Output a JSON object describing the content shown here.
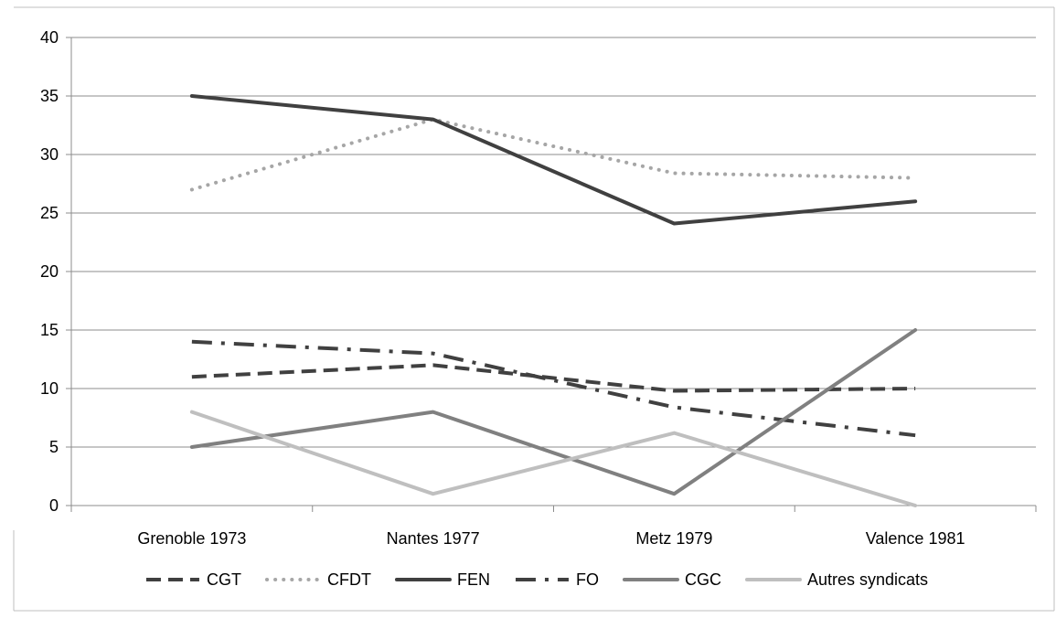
{
  "chart_data": {
    "type": "line",
    "title": "",
    "xlabel": "",
    "ylabel": "",
    "categories": [
      "Grenoble 1973",
      "Nantes 1977",
      "Metz 1979",
      "Valence 1981"
    ],
    "ylim": [
      0,
      40
    ],
    "yticks": [
      0,
      5,
      10,
      15,
      20,
      25,
      30,
      35,
      40
    ],
    "grid": true,
    "legend_position": "bottom",
    "series": [
      {
        "name": "CGT",
        "values": [
          11,
          12,
          9.8,
          10
        ],
        "color": "#404040",
        "style": "dashed"
      },
      {
        "name": "CFDT",
        "values": [
          27,
          33,
          28.4,
          28
        ],
        "color": "#a6a6a6",
        "style": "dotted"
      },
      {
        "name": "FEN",
        "values": [
          35,
          33,
          24.1,
          26
        ],
        "color": "#404040",
        "style": "solid"
      },
      {
        "name": "FO",
        "values": [
          14,
          13,
          8.4,
          6
        ],
        "color": "#404040",
        "style": "dash-dot"
      },
      {
        "name": "CGC",
        "values": [
          5,
          8,
          1,
          15
        ],
        "color": "#808080",
        "style": "solid"
      },
      {
        "name": "Autres syndicats",
        "values": [
          8,
          1,
          6.2,
          0
        ],
        "color": "#bfbfbf",
        "style": "solid"
      }
    ]
  }
}
